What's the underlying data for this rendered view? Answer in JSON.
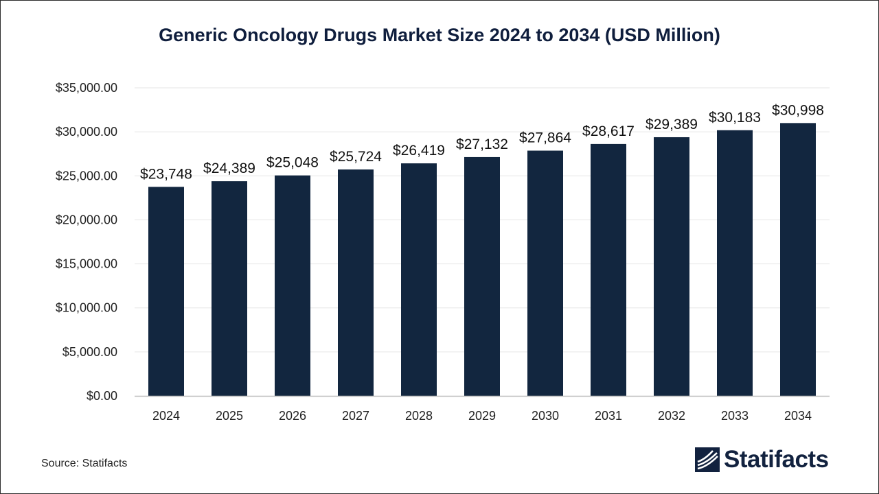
{
  "chart_data": {
    "type": "bar",
    "title": "Generic Oncology Drugs Market Size 2024 to 2034 (USD Million)",
    "categories": [
      "2024",
      "2025",
      "2026",
      "2027",
      "2028",
      "2029",
      "2030",
      "2031",
      "2032",
      "2033",
      "2034"
    ],
    "values": [
      23748,
      24389,
      25048,
      25724,
      26419,
      27132,
      27864,
      28617,
      29389,
      30183,
      30998
    ],
    "value_labels": [
      "$23,748",
      "$24,389",
      "$25,048",
      "$25,724",
      "$26,419",
      "$27,132",
      "$27,864",
      "$28,617",
      "$29,389",
      "$30,183",
      "$30,998"
    ],
    "ylim": [
      0,
      35000
    ],
    "yticks": [
      0,
      5000,
      10000,
      15000,
      20000,
      25000,
      30000,
      35000
    ],
    "ytick_labels": [
      "$0.00",
      "$5,000.00",
      "$10,000.00",
      "$15,000.00",
      "$20,000.00",
      "$25,000.00",
      "$30,000.00",
      "$35,000.00"
    ],
    "xlabel": "",
    "ylabel": "",
    "grid": true,
    "bar_color": "#12263f",
    "grid_color": "#e6e6e6"
  },
  "footer": {
    "source": "Source: Statifacts",
    "brand": "Statifacts",
    "brand_icon": "statifacts-logo-icon"
  }
}
